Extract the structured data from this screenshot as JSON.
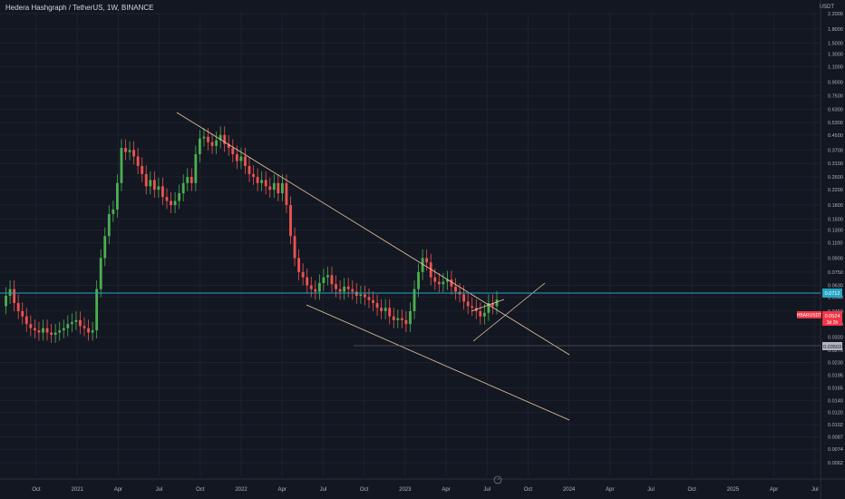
{
  "header": {
    "title": "Hedera Hashgraph / TetherUS, 1W, BINANCE",
    "currency": "USDT"
  },
  "price_axis": {
    "ticks": [
      "2.2000",
      "1.8000",
      "1.5000",
      "1.3000",
      "1.1000",
      "0.9000",
      "0.7500",
      "0.6300",
      "0.5300",
      "0.4500",
      "0.3700",
      "0.3100",
      "0.2600",
      "0.2200",
      "0.1800",
      "0.1500",
      "0.1300",
      "0.1100",
      "0.0900",
      "0.0750",
      "0.0630",
      "0.0540",
      "0.0450",
      "0.0380",
      "0.0320",
      "0.0270",
      "0.0230",
      "0.0195",
      "0.0165",
      "0.0140",
      "0.0120",
      "0.0102",
      "0.0087",
      "0.0074",
      "0.0062"
    ],
    "current_label": "0.0524",
    "countdown": "3d 2h",
    "symbol_tag": "HBARUSDT",
    "horizontal_line_tag": "0.0712",
    "support_tag": "0.03503",
    "current_color": "#f23645",
    "hline_color": "#26a6c4"
  },
  "time_axis": {
    "labels": [
      "Oct",
      "2021",
      "Apr",
      "Jul",
      "Oct",
      "2022",
      "Apr",
      "Jul",
      "Oct",
      "2023",
      "Apr",
      "Jul",
      "Oct",
      "2024",
      "Apr",
      "Jul",
      "Oct",
      "2025",
      "Apr",
      "Jul"
    ]
  },
  "colors": {
    "up": "#26a69a",
    "up_bright": "#4caf50",
    "down": "#ef5350",
    "trend": "#e8c9a0",
    "grid": "#1e222d"
  }
}
